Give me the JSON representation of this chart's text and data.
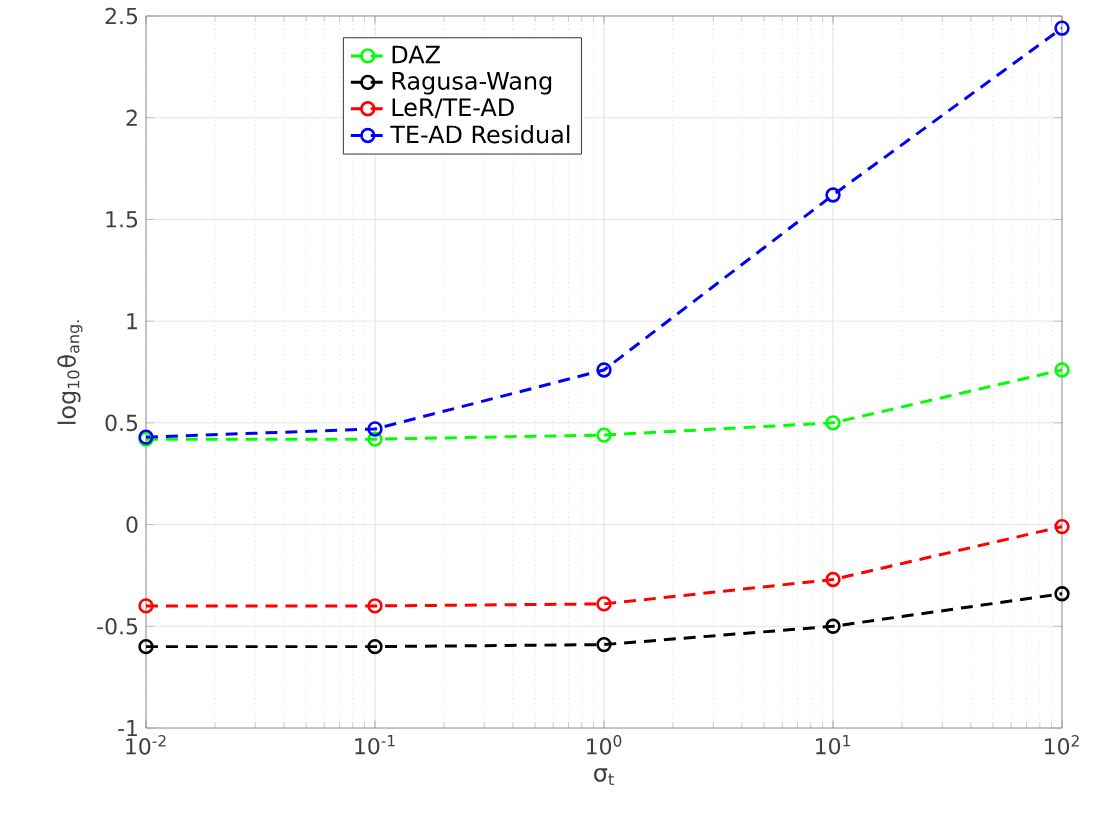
{
  "chart_data": {
    "type": "line",
    "xlabel": "σ$_{t}$",
    "ylabel": "log$_{10}$θ$_{ang.}$",
    "x": [
      0.01,
      0.1,
      1,
      10,
      100
    ],
    "series": [
      {
        "name": "DAZ",
        "color": "#00ff00",
        "values": [
          0.42,
          0.42,
          0.44,
          0.5,
          0.76
        ]
      },
      {
        "name": "Ragusa-Wang",
        "color": "#000000",
        "values": [
          -0.6,
          -0.6,
          -0.59,
          -0.5,
          -0.34
        ]
      },
      {
        "name": "LeR/TE-AD",
        "color": "#ff0000",
        "values": [
          -0.4,
          -0.4,
          -0.39,
          -0.27,
          -0.01
        ]
      },
      {
        "name": "TE-AD Residual",
        "color": "#0000ff",
        "values": [
          0.43,
          0.47,
          0.76,
          1.62,
          2.44
        ]
      }
    ],
    "log": "x",
    "xlim": [
      0.01,
      100
    ],
    "xticks": [
      {
        "value": 0.01,
        "label": "10$^{-2}$"
      },
      {
        "value": 0.1,
        "label": "10$^{-1}$"
      },
      {
        "value": 1,
        "label": "10$^{0}$"
      },
      {
        "value": 10,
        "label": "10$^{1}$"
      },
      {
        "value": 100,
        "label": "10$^{2}$"
      }
    ],
    "ylim": [
      -1,
      2.5
    ],
    "yticks": [
      -1,
      -0.5,
      0,
      0.5,
      1,
      1.5,
      2,
      2.5
    ],
    "grid": true,
    "legend": "top left",
    "marker": "circle",
    "line_style": "dashed"
  }
}
